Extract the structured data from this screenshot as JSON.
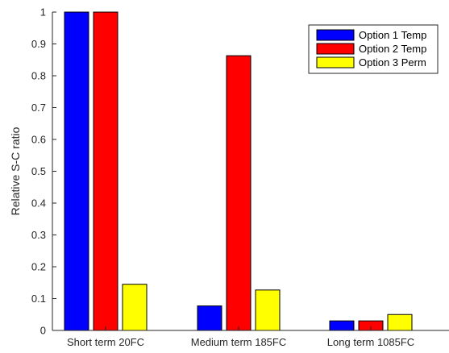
{
  "chart_data": {
    "type": "bar",
    "categories": [
      "Short term 20FC",
      "Medium term 185FC",
      "Long term 1085FC"
    ],
    "series": [
      {
        "name": "Option 1 Temp",
        "color": "#0000ff",
        "values": [
          1.0,
          0.077,
          0.03
        ]
      },
      {
        "name": "Option 2 Temp",
        "color": "#ff0000",
        "values": [
          1.0,
          0.863,
          0.03
        ]
      },
      {
        "name": "Option 3 Perm",
        "color": "#ffff00",
        "values": [
          0.145,
          0.127,
          0.05
        ]
      }
    ],
    "title": "",
    "xlabel": "",
    "ylabel": "Relative S-C ratio",
    "ylim": [
      0,
      1
    ],
    "yticks": [
      0,
      0.1,
      0.2,
      0.3,
      0.4,
      0.5,
      0.6,
      0.7,
      0.8,
      0.9,
      1
    ],
    "ytick_labels": [
      "0",
      "0.1",
      "0.2",
      "0.3",
      "0.4",
      "0.5",
      "0.6",
      "0.7",
      "0.8",
      "0.9",
      "1"
    ],
    "grid": false,
    "legend_position": "top-right"
  }
}
